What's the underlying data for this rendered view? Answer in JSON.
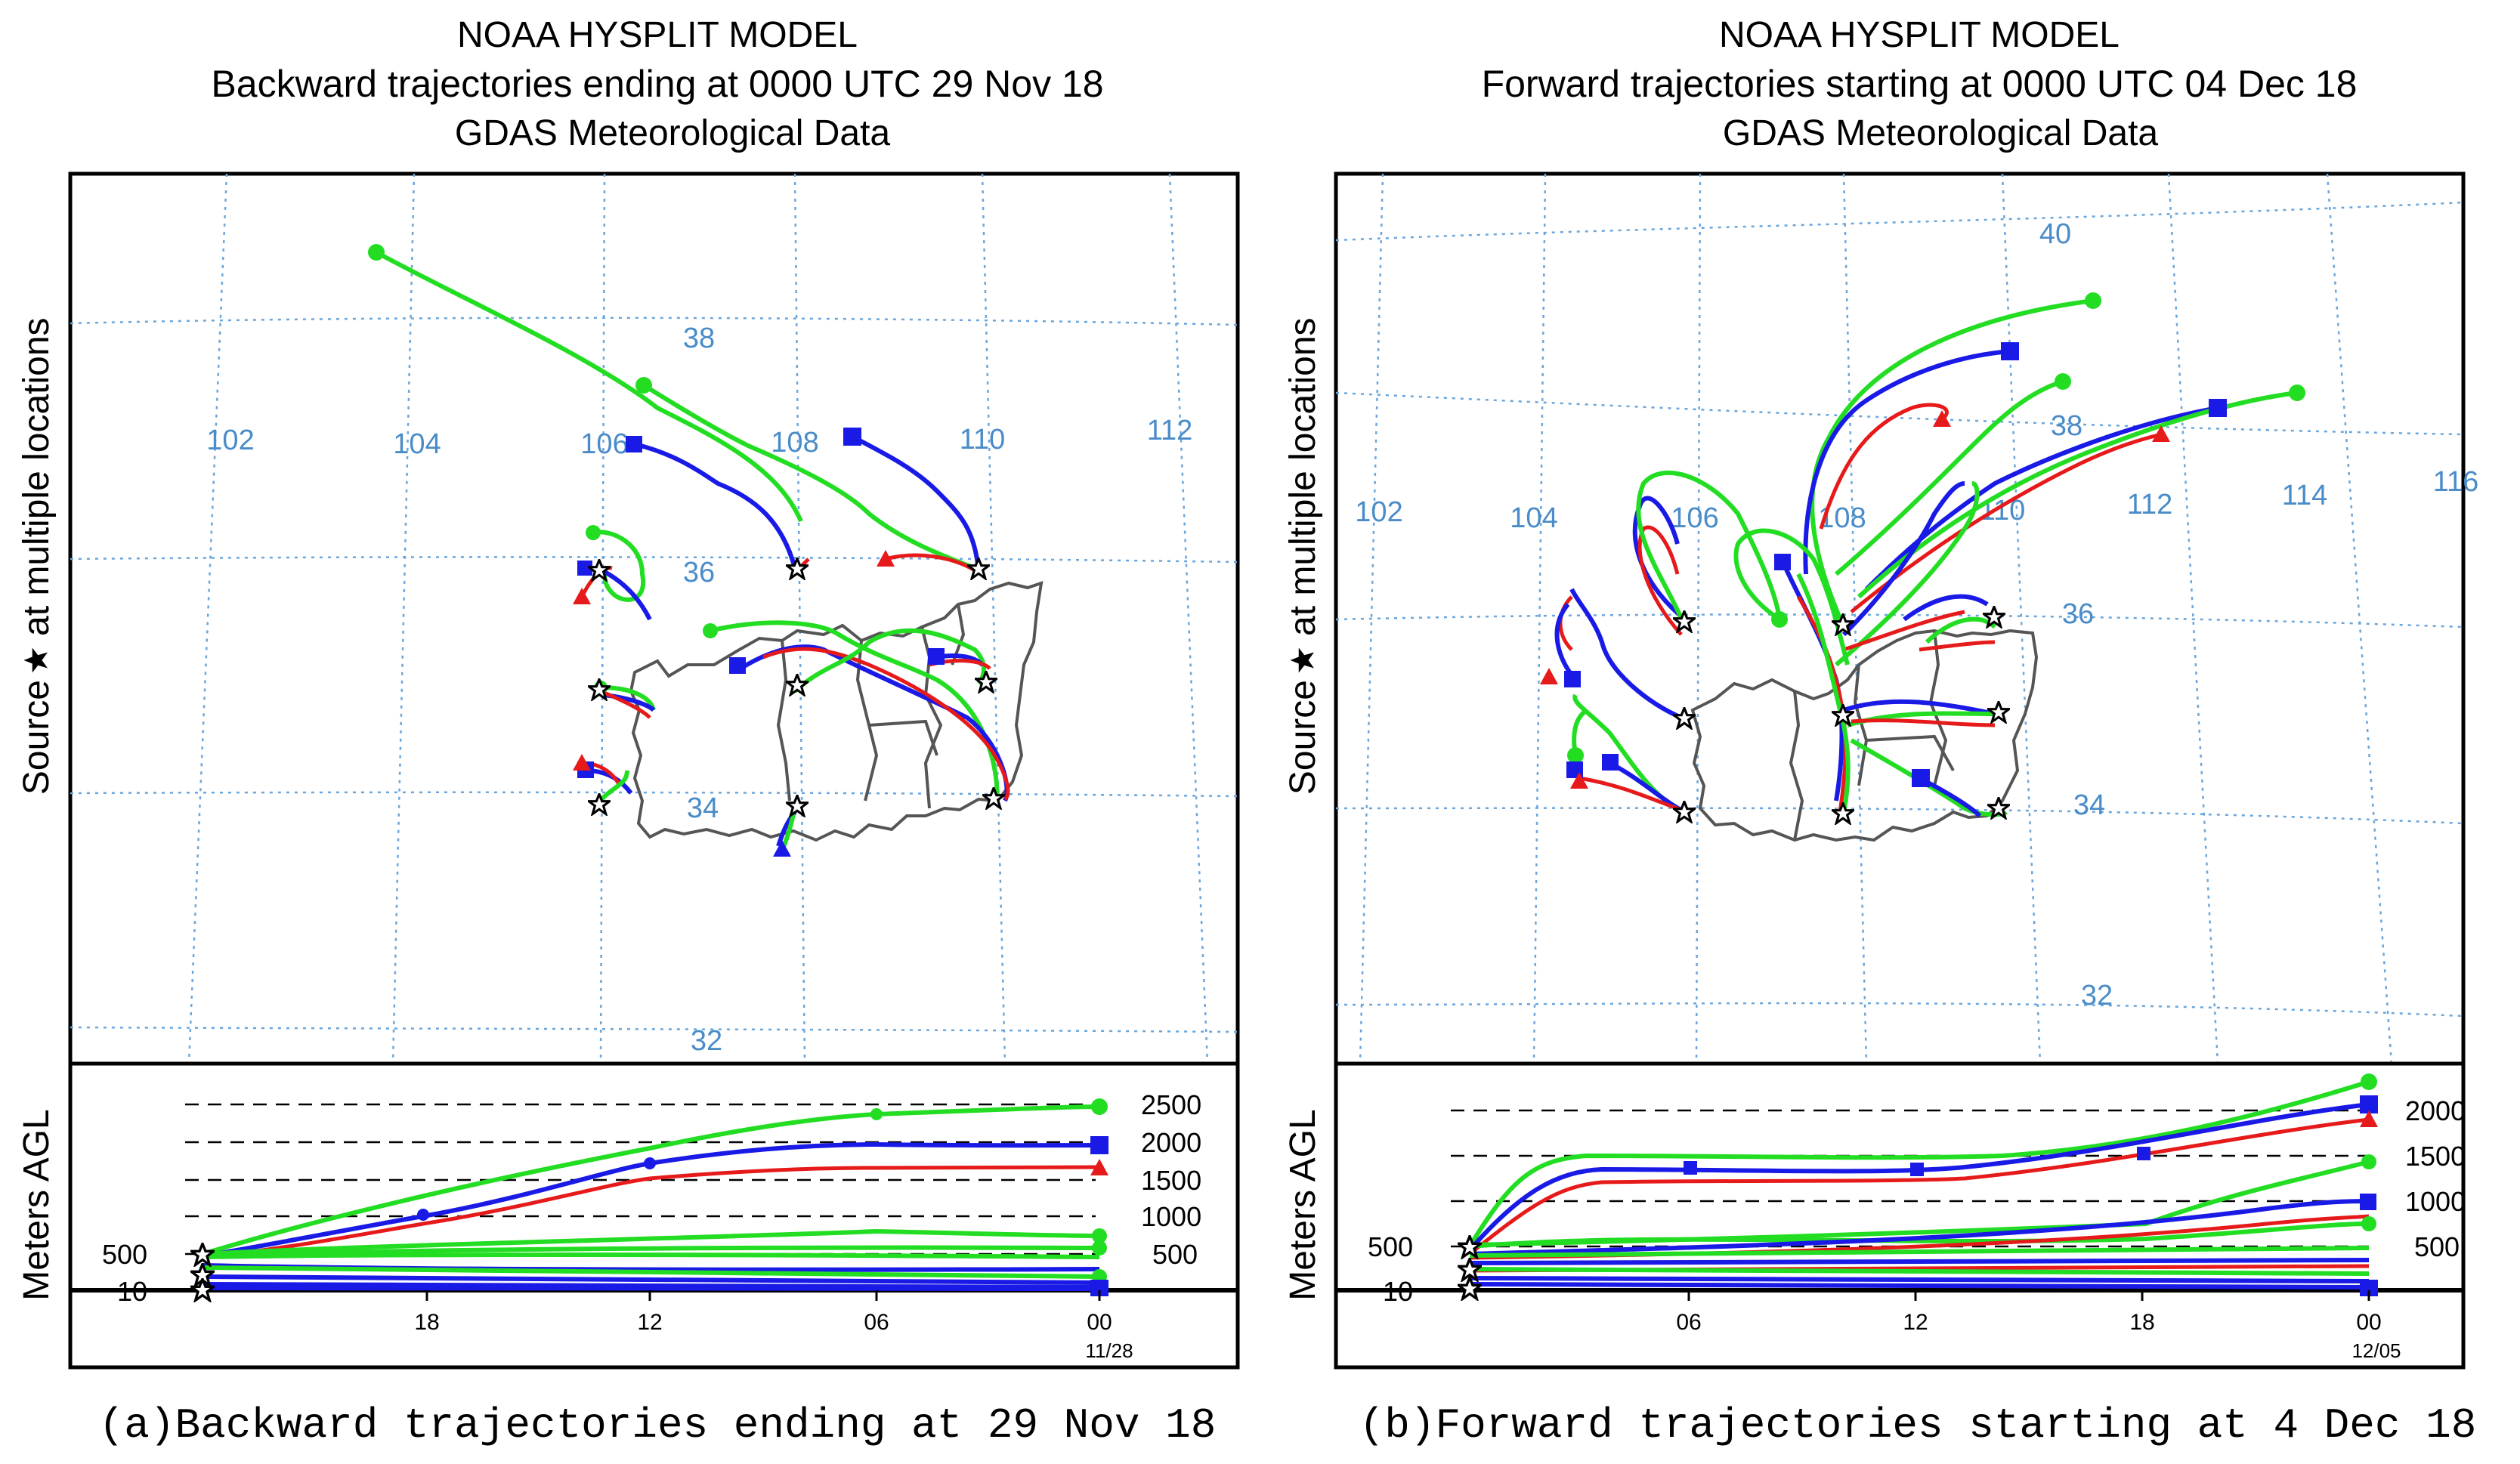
{
  "panel_a": {
    "title_line1": "NOAA HYSPLIT MODEL",
    "title_line2": "Backward trajectories ending at 0000 UTC 29 Nov 18",
    "title_line3": "GDAS Meteorological Data",
    "y_axis_label_source": "Source",
    "y_axis_label_locations": "at multiple locations",
    "height_axis_label": "Meters AGL",
    "lon_labels": [
      "102",
      "104",
      "106",
      "108",
      "110",
      "112"
    ],
    "lat_labels": [
      "38",
      "36",
      "34",
      "32"
    ],
    "height_right_labels": [
      "2500",
      "2000",
      "1500",
      "1000",
      "500"
    ],
    "height_left_labels": [
      "500",
      "10"
    ],
    "time_ticks": [
      "18",
      "12",
      "06",
      "00"
    ],
    "date_label": "11/28",
    "caption": "(a)Backward trajectories ending at 29 Nov 18"
  },
  "panel_b": {
    "title_line1": "NOAA HYSPLIT MODEL",
    "title_line2": "Forward trajectories starting at 0000 UTC 04 Dec 18",
    "title_line3": "GDAS Meteorological Data",
    "y_axis_label_source": "Source",
    "y_axis_label_locations": "at multiple locations",
    "height_axis_label": "Meters AGL",
    "lon_labels": [
      "102",
      "104",
      "106",
      "108",
      "110",
      "112",
      "114",
      "116"
    ],
    "lat_labels": [
      "40",
      "38",
      "36",
      "34",
      "32"
    ],
    "height_right_labels": [
      "2000",
      "1500",
      "1000",
      "500"
    ],
    "height_left_labels": [
      "500",
      "10"
    ],
    "time_ticks": [
      "06",
      "12",
      "18",
      "00"
    ],
    "date_label": "12/05",
    "caption": "(b)Forward trajectories starting at 4 Dec 18"
  },
  "colors": {
    "trajectory_high": "#22dd22",
    "trajectory_mid": "#1a1ae6",
    "trajectory_low": "#e61a1a",
    "grid": "#6aa6dc",
    "border": "#555555"
  },
  "legend_symbols": {
    "source": "star-icon"
  }
}
